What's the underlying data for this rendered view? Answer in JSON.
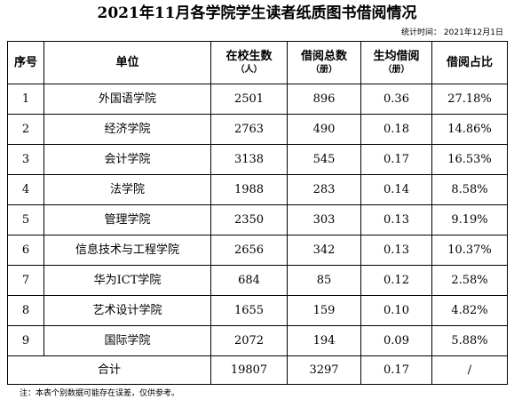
{
  "title": "2021年11月各学院学生读者纸质图书借阅情况",
  "stat_date": "统计时间：  2021年12月1日",
  "headers": {
    "seq": "序号",
    "unit": "单位",
    "students": "在校生数",
    "students_unit": "（人）",
    "borrows": "借阅总数",
    "borrows_unit": "（册）",
    "avg": "生均借阅",
    "avg_unit": "（册）",
    "share": "借阅占比"
  },
  "rows": [
    {
      "seq": "1",
      "unit": "外国语学院",
      "students": "2501",
      "borrows": "896",
      "avg": "0.36",
      "share": "27.18%"
    },
    {
      "seq": "2",
      "unit": "经济学院",
      "students": "2763",
      "borrows": "490",
      "avg": "0.18",
      "share": "14.86%"
    },
    {
      "seq": "3",
      "unit": "会计学院",
      "students": "3138",
      "borrows": "545",
      "avg": "0.17",
      "share": "16.53%"
    },
    {
      "seq": "4",
      "unit": "法学院",
      "students": "1988",
      "borrows": "283",
      "avg": "0.14",
      "share": "8.58%"
    },
    {
      "seq": "5",
      "unit": "管理学院",
      "students": "2350",
      "borrows": "303",
      "avg": "0.13",
      "share": "9.19%"
    },
    {
      "seq": "6",
      "unit": "信息技术与工程学院",
      "students": "2656",
      "borrows": "342",
      "avg": "0.13",
      "share": "10.37%"
    },
    {
      "seq": "7",
      "unit": "华为ICT学院",
      "students": "684",
      "borrows": "85",
      "avg": "0.12",
      "share": "2.58%"
    },
    {
      "seq": "8",
      "unit": "艺术设计学院",
      "students": "1655",
      "borrows": "159",
      "avg": "0.10",
      "share": "4.82%"
    },
    {
      "seq": "9",
      "unit": "国际学院",
      "students": "2072",
      "borrows": "194",
      "avg": "0.09",
      "share": "5.88%"
    }
  ],
  "total": {
    "label": "合计",
    "students": "19807",
    "borrows": "3297",
    "avg": "0.17",
    "share": "/"
  },
  "note": "注：本表个别数据可能存在误差，仅供参考。"
}
